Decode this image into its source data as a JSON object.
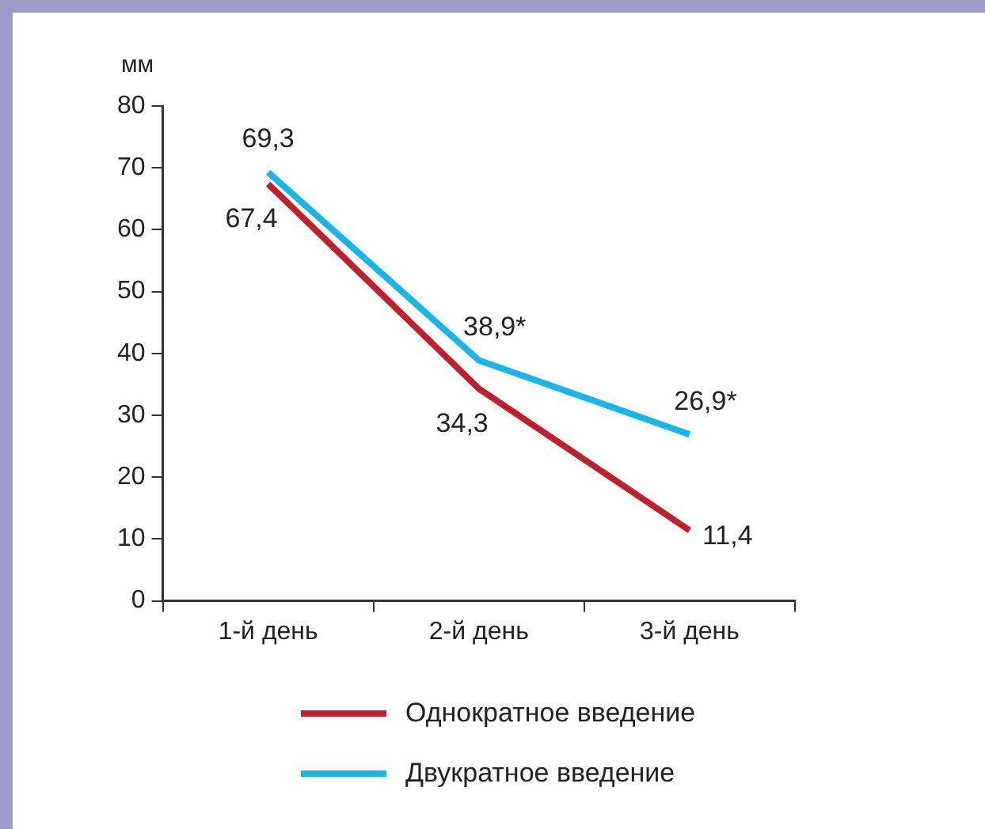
{
  "chart_data": {
    "type": "line",
    "ylabel": "мм",
    "categories": [
      "1-й день",
      "2-й день",
      "3-й день"
    ],
    "series": [
      {
        "name": "Однократное введение",
        "color": "#c0202e",
        "values": [
          67.4,
          34.3,
          11.4
        ],
        "value_labels": [
          "67,4",
          "34,3",
          "11,4"
        ]
      },
      {
        "name": "Двукратное введение",
        "color": "#18b4ea",
        "values": [
          69.3,
          38.9,
          26.9
        ],
        "value_labels": [
          "69,3",
          "38,9*",
          "26,9*"
        ]
      }
    ],
    "ylim": [
      0,
      80
    ],
    "yticks": [
      0,
      10,
      20,
      30,
      40,
      50,
      60,
      70,
      80
    ],
    "grid": false,
    "legend": "bottom",
    "marker": "none",
    "line_style": "solid"
  }
}
